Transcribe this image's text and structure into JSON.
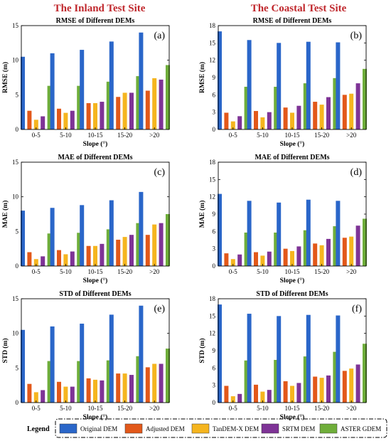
{
  "site_titles": [
    "The Inland Test Site",
    "The Coastal Test Site"
  ],
  "legend": {
    "title": "Legend",
    "items": [
      {
        "name": "Original DEM",
        "color": "#2a66c9"
      },
      {
        "name": "Adjusted DEM",
        "color": "#e2581a"
      },
      {
        "name": "TanDEM-X DEM",
        "color": "#f5b51f"
      },
      {
        "name": "SRTM DEM",
        "color": "#7e3396"
      },
      {
        "name": "ASTER GDEM",
        "color": "#6fae3a"
      }
    ]
  },
  "chart_data": [
    {
      "type": "bar",
      "panel": "(a)",
      "title": "RMSE of Different DEMs",
      "xlabel": "Slope (°)",
      "ylabel": "RMSE (m)",
      "ylim": [
        0,
        15
      ],
      "yticks": [
        0,
        5,
        10,
        15
      ],
      "categories": [
        "0-5",
        "5-10",
        "10-15",
        "15-20",
        ">20"
      ],
      "series": [
        {
          "name": "Original DEM",
          "values": [
            10.5,
            11.0,
            11.5,
            12.7,
            14.0
          ]
        },
        {
          "name": "Adjusted DEM",
          "values": [
            2.7,
            3.0,
            3.8,
            4.7,
            5.6
          ]
        },
        {
          "name": "TanDEM-X DEM",
          "values": [
            1.4,
            2.4,
            3.8,
            5.3,
            7.4
          ]
        },
        {
          "name": "SRTM DEM",
          "values": [
            1.9,
            2.7,
            4.0,
            5.3,
            7.2
          ]
        },
        {
          "name": "ASTER GDEM",
          "values": [
            6.3,
            6.3,
            6.9,
            7.7,
            9.3
          ]
        }
      ]
    },
    {
      "type": "bar",
      "panel": "(b)",
      "title": "RMSE of Different DEMs",
      "xlabel": "Slope (°)",
      "ylabel": "RMSE (m)",
      "ylim": [
        0,
        18
      ],
      "yticks": [
        0,
        3,
        6,
        9,
        12,
        15,
        18
      ],
      "categories": [
        "0-5",
        "5-10",
        "10-15",
        "15-20",
        ">20"
      ],
      "series": [
        {
          "name": "Original DEM",
          "values": [
            17.0,
            15.5,
            15.0,
            15.2,
            15.1
          ]
        },
        {
          "name": "Adjusted DEM",
          "values": [
            2.9,
            3.2,
            3.8,
            4.8,
            6.0
          ]
        },
        {
          "name": "TanDEM-X DEM",
          "values": [
            1.4,
            2.1,
            2.9,
            4.3,
            6.2
          ]
        },
        {
          "name": "SRTM DEM",
          "values": [
            2.3,
            3.0,
            4.1,
            5.6,
            8.0
          ]
        },
        {
          "name": "ASTER GDEM",
          "values": [
            7.4,
            7.4,
            8.0,
            8.9,
            10.5
          ]
        }
      ]
    },
    {
      "type": "bar",
      "panel": "(c)",
      "title": "MAE of Different DEMs",
      "xlabel": "Slope (°)",
      "ylabel": "MAE (m)",
      "ylim": [
        0,
        15
      ],
      "yticks": [
        0,
        5,
        10,
        15
      ],
      "categories": [
        "0-5",
        "5-10",
        "10-15",
        "15-20",
        ">20"
      ],
      "series": [
        {
          "name": "Original DEM",
          "values": [
            8.0,
            8.4,
            8.8,
            9.5,
            10.7
          ]
        },
        {
          "name": "Adjusted DEM",
          "values": [
            2.0,
            2.3,
            2.9,
            3.8,
            4.5
          ]
        },
        {
          "name": "TanDEM-X DEM",
          "values": [
            1.0,
            1.7,
            2.9,
            4.2,
            6.0
          ]
        },
        {
          "name": "SRTM DEM",
          "values": [
            1.4,
            2.1,
            3.2,
            4.5,
            6.2
          ]
        },
        {
          "name": "ASTER GDEM",
          "values": [
            4.7,
            4.8,
            5.3,
            6.2,
            7.5
          ]
        }
      ]
    },
    {
      "type": "bar",
      "panel": "(d)",
      "title": "MAE of Different DEMs",
      "xlabel": "Slope (°)",
      "ylabel": "MAE (m)",
      "ylim": [
        0,
        18
      ],
      "yticks": [
        0,
        3,
        6,
        9,
        12,
        15,
        18
      ],
      "categories": [
        "0-5",
        "5-10",
        "10-15",
        "15-20",
        ">20"
      ],
      "series": [
        {
          "name": "Original DEM",
          "values": [
            12.5,
            11.3,
            11.0,
            11.5,
            11.3
          ]
        },
        {
          "name": "Adjusted DEM",
          "values": [
            2.2,
            2.4,
            3.0,
            3.9,
            4.9
          ]
        },
        {
          "name": "TanDEM-X DEM",
          "values": [
            1.2,
            1.8,
            2.6,
            3.6,
            5.1
          ]
        },
        {
          "name": "SRTM DEM",
          "values": [
            2.0,
            2.5,
            3.4,
            4.7,
            7.0
          ]
        },
        {
          "name": "ASTER GDEM",
          "values": [
            5.8,
            5.8,
            6.2,
            6.9,
            8.2
          ]
        }
      ]
    },
    {
      "type": "bar",
      "panel": "(e)",
      "title": "STD of Different DEMs",
      "xlabel": "Slope (°)",
      "ylabel": "STD (m)",
      "ylim": [
        0,
        15
      ],
      "yticks": [
        0,
        5,
        10,
        15
      ],
      "categories": [
        "0-5",
        "5-10",
        "10-15",
        "15-20",
        ">20"
      ],
      "series": [
        {
          "name": "Original DEM",
          "values": [
            10.5,
            11.0,
            11.4,
            12.7,
            14.0
          ]
        },
        {
          "name": "Adjusted DEM",
          "values": [
            2.7,
            3.0,
            3.5,
            4.2,
            5.1
          ]
        },
        {
          "name": "TanDEM-X DEM",
          "values": [
            1.5,
            2.3,
            3.3,
            4.2,
            5.6
          ]
        },
        {
          "name": "SRTM DEM",
          "values": [
            1.8,
            2.3,
            3.2,
            4.0,
            5.6
          ]
        },
        {
          "name": "ASTER GDEM",
          "values": [
            6.0,
            6.0,
            6.1,
            6.7,
            7.8
          ]
        }
      ]
    },
    {
      "type": "bar",
      "panel": "(f)",
      "title": "STD of Different DEMs",
      "xlabel": "Slope (°)",
      "ylabel": "STD (m)",
      "ylim": [
        0,
        18
      ],
      "yticks": [
        0,
        3,
        6,
        9,
        12,
        15,
        18
      ],
      "categories": [
        "0-5",
        "5-10",
        "10-15",
        "15-20",
        ">20"
      ],
      "series": [
        {
          "name": "Original DEM",
          "values": [
            17.0,
            15.4,
            15.0,
            15.2,
            15.1
          ]
        },
        {
          "name": "Adjusted DEM",
          "values": [
            2.9,
            3.1,
            3.7,
            4.5,
            5.5
          ]
        },
        {
          "name": "TanDEM-X DEM",
          "values": [
            1.1,
            1.9,
            2.9,
            4.3,
            5.9
          ]
        },
        {
          "name": "SRTM DEM",
          "values": [
            1.5,
            2.2,
            3.4,
            4.7,
            6.6
          ]
        },
        {
          "name": "ASTER GDEM",
          "values": [
            7.3,
            7.4,
            8.0,
            8.8,
            10.2
          ]
        }
      ]
    }
  ]
}
